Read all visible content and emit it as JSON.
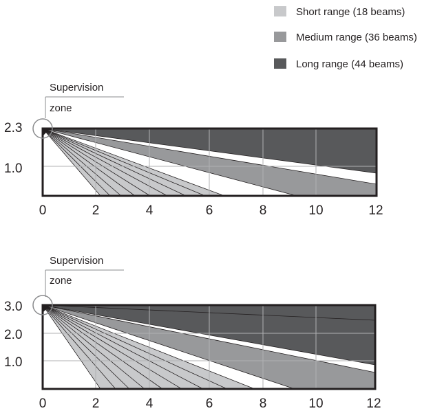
{
  "legend": {
    "items": [
      {
        "label": "Short range (18 beams)",
        "color": "#c8c9cb"
      },
      {
        "label": "Medium range (36 beams)",
        "color": "#98999b"
      },
      {
        "label": "Long range (44 beams)",
        "color": "#58595b"
      }
    ]
  },
  "diagrams": [
    {
      "zone_label": [
        "Supervision",
        "zone"
      ],
      "x_ticks": [
        "0",
        "2",
        "4",
        "6",
        "8",
        "10",
        "12"
      ],
      "y_ticks": [
        "2.3",
        "1.0"
      ],
      "height": 2.3
    },
    {
      "zone_label": [
        "Supervision",
        "zone"
      ],
      "x_ticks": [
        "0",
        "2",
        "4",
        "6",
        "8",
        "10",
        "12"
      ],
      "y_ticks": [
        "3.0",
        "2.0",
        "1.0"
      ],
      "height": 3.0
    }
  ],
  "colors": {
    "short": "#c8c9cb",
    "medium": "#98999b",
    "long": "#58595b",
    "frame": "#231f20",
    "grid": "#b0b1b3"
  }
}
